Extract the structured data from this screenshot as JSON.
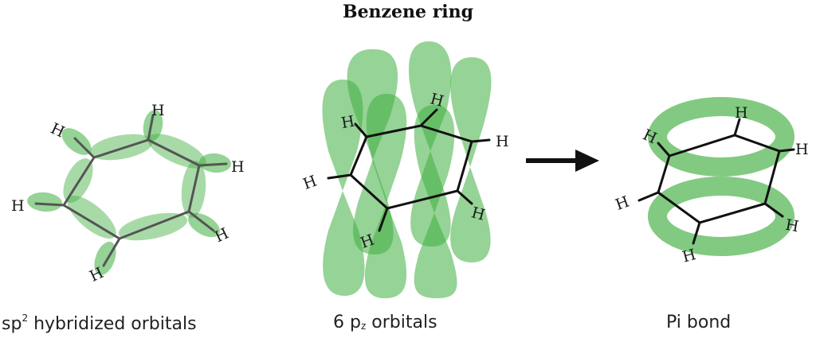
{
  "title": "Benzene ring",
  "captions": {
    "sp2_prefix": "sp",
    "sp2_sup": "2",
    "sp2_rest": " hybridized orbitals",
    "pz_prefix": "6 p",
    "pz_sub": "z",
    "pz_rest": " orbitals",
    "pi": "Pi bond"
  },
  "atom_label": "H",
  "colors": {
    "orbital": "#3fae3f",
    "bond": "#111111"
  }
}
